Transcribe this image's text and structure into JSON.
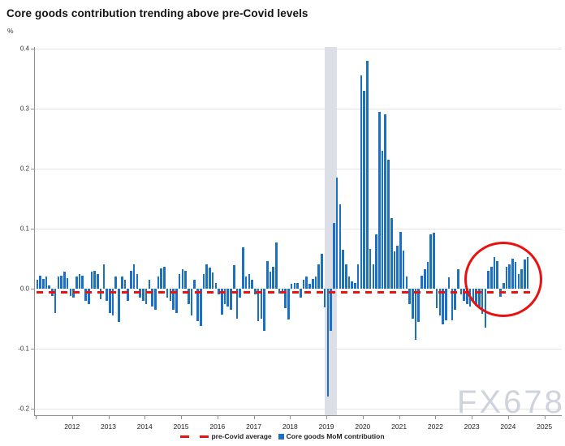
{
  "title": "Core goods contribution trending above pre-Covid levels",
  "unit_label": "%",
  "watermark": "FX678",
  "colors": {
    "bar": "#1c70c4",
    "pre_covid_line": "#ea1310",
    "recession_band": "#dcdfe6",
    "annotation_circle": "#e81210",
    "gridline": "#e4e4e4",
    "axis": "#8f8f8f",
    "watermark": "#c2c9d6"
  },
  "legend": {
    "items": [
      {
        "label": "pre-Covid average",
        "marker": "red-dashes"
      },
      {
        "label": "Core goods MoM contribution",
        "marker": "blue-square"
      }
    ]
  },
  "chart_data": {
    "type": "bar",
    "title": "Core goods contribution trending above pre-Covid levels",
    "ylabel": "%",
    "ylim": [
      -0.2,
      0.41
    ],
    "grid": "horizontal",
    "legend_position": "bottom-center",
    "yticks": [
      {
        "value": 0.4,
        "label": "0.4"
      },
      {
        "value": 0.3,
        "label": "0.3"
      },
      {
        "value": 0.2,
        "label": "0.2"
      },
      {
        "value": 0.1,
        "label": "0.1"
      },
      {
        "value": 0.0,
        "label": "0.0"
      },
      {
        "value": -0.1,
        "label": "-0.1"
      },
      {
        "value": -0.2,
        "label": "-0.2"
      }
    ],
    "x_year_labels": [
      "2012",
      "2013",
      "2014",
      "2015",
      "2016",
      "2017",
      "2018",
      "2019",
      "2020",
      "2021",
      "2022",
      "2023",
      "2024",
      "2025"
    ],
    "frequency": "monthly",
    "start": "2012-01",
    "series": [
      {
        "name": "Core goods MoM contribution",
        "values": [
          0.015,
          0.022,
          0.016,
          0.02,
          0.005,
          -0.012,
          -0.04,
          0.02,
          0.022,
          0.028,
          0.018,
          -0.012,
          -0.015,
          0.02,
          0.025,
          0.021,
          -0.02,
          -0.025,
          0.028,
          0.03,
          0.025,
          -0.018,
          0.04,
          -0.02,
          -0.04,
          -0.045,
          0.02,
          -0.055,
          0.02,
          0.015,
          -0.02,
          0.03,
          0.04,
          0.025,
          -0.015,
          -0.02,
          -0.025,
          0.015,
          -0.03,
          -0.035,
          0.02,
          0.034,
          0.036,
          -0.015,
          -0.02,
          -0.035,
          -0.04,
          0.025,
          0.032,
          0.03,
          -0.025,
          -0.045,
          0.015,
          -0.054,
          -0.062,
          0.025,
          0.04,
          0.035,
          0.027,
          0.01,
          -0.01,
          -0.043,
          -0.025,
          -0.03,
          -0.035,
          0.039,
          -0.05,
          -0.015,
          0.069,
          0.02,
          0.025,
          0.015,
          -0.01,
          -0.054,
          -0.05,
          -0.07,
          0.046,
          0.028,
          0.036,
          0.077,
          -0.008,
          -0.005,
          -0.032,
          -0.051,
          0.008,
          0.01,
          0.01,
          -0.015,
          0.015,
          0.02,
          0.008,
          0.016,
          0.02,
          0.04,
          0.058,
          -0.031,
          -0.18,
          -0.07,
          0.11,
          0.185,
          0.14,
          0.065,
          0.04,
          0.02,
          0.012,
          0.01,
          0.04,
          0.355,
          0.33,
          0.38,
          0.066,
          0.04,
          0.09,
          0.295,
          0.23,
          0.29,
          0.215,
          0.118,
          0.062,
          0.072,
          0.095,
          0.063,
          0.02,
          -0.025,
          -0.05,
          -0.085,
          -0.055,
          0.021,
          0.032,
          0.044,
          0.091,
          0.093,
          -0.032,
          -0.045,
          -0.059,
          -0.053,
          0.019,
          -0.053,
          -0.035,
          0.032,
          -0.01,
          -0.02,
          -0.025,
          -0.03,
          -0.022,
          -0.028,
          -0.031,
          -0.042,
          -0.065,
          0.03,
          0.037,
          0.053,
          0.046,
          -0.013,
          0.01,
          0.037,
          0.041,
          0.05,
          0.044,
          0.025,
          0.033,
          0.048,
          0.053
        ]
      }
    ],
    "reference_line": {
      "name": "pre-Covid average",
      "value": -0.005,
      "style": "dashed",
      "color": "#ea1310"
    },
    "recession_band": {
      "name": "Covid recession shading",
      "position": "early 2020"
    },
    "annotation": {
      "name": "circle highlighting recent months",
      "position": "late 2024 - 2025"
    }
  }
}
